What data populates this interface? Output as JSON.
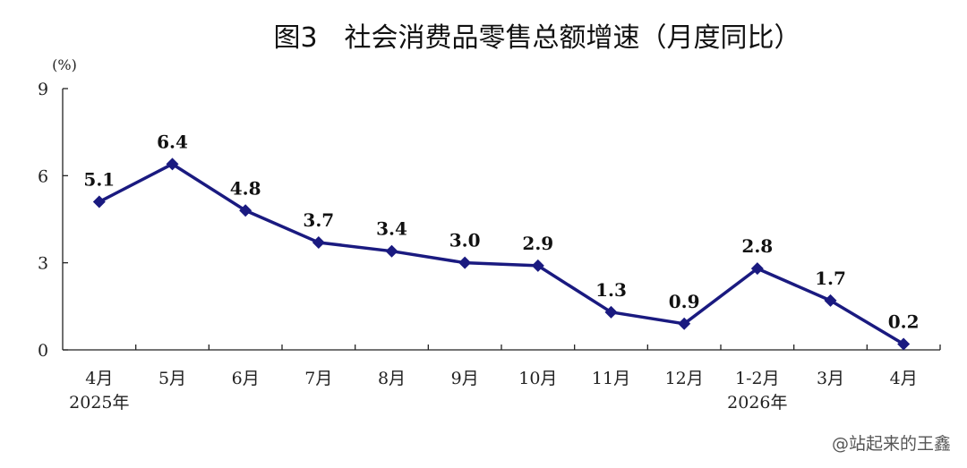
{
  "chart_data": {
    "type": "line",
    "title": "图3　社会消费品零售总额增速（月度同比）",
    "ylabel": "(%)",
    "xlabel": "",
    "ylim": [
      0,
      9
    ],
    "yticks": [
      0,
      3,
      6,
      9
    ],
    "grid": false,
    "categories": [
      "4月",
      "5月",
      "6月",
      "7月",
      "8月",
      "9月",
      "10月",
      "11月",
      "12月",
      "1-2月",
      "3月",
      "4月"
    ],
    "year_labels": [
      {
        "category_index": 0,
        "text": "2025年"
      },
      {
        "category_index": 9,
        "text": "2026年"
      }
    ],
    "series": [
      {
        "values": [
          5.1,
          6.4,
          4.8,
          3.7,
          3.4,
          3.0,
          2.9,
          1.3,
          0.9,
          2.8,
          1.7,
          0.2
        ]
      }
    ],
    "data_labels": [
      "5.1",
      "6.4",
      "4.8",
      "3.7",
      "3.4",
      "3.0",
      "2.9",
      "1.3",
      "0.9",
      "2.8",
      "1.7",
      "0.2"
    ],
    "line_color": "#1a1a80",
    "marker": "diamond"
  },
  "watermark": "@站起来的王鑫"
}
